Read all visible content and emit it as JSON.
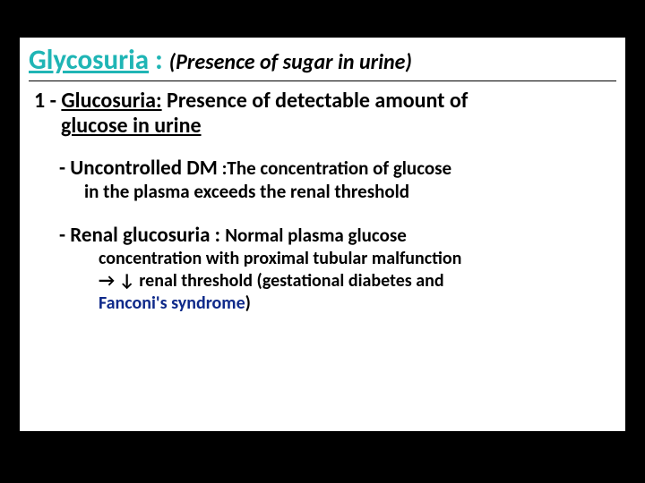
{
  "colors": {
    "background": "#000000",
    "slide_bg": "#ffffff",
    "title": "#1fb5b5",
    "text": "#000000",
    "fanconi": "#0f2a8a"
  },
  "title": {
    "main": "Glycosuria",
    "colon": " : ",
    "sub": "(Presence of sugar in urine)"
  },
  "item1": {
    "lead": "1 - ",
    "term": "Glucosuria:",
    "rest": " Presence of detectable amount of",
    "line2": "glucose in urine"
  },
  "subA": {
    "dash": "- ",
    "term": "Uncontrolled DM",
    "colon": " :",
    "desc": "The concentration of glucose",
    "body": "in the plasma exceeds the renal threshold"
  },
  "subB": {
    "dash": "- ",
    "term": "Renal glucosuria",
    "colon": " : ",
    "desc": "Normal plasma glucose",
    "body1": "concentration with proximal tubular malfunction",
    "body2a": "→ ↓ renal threshold ",
    "body2b_open": "(",
    "body2b": "gestational diabetes and",
    "body3": "Fanconi's syndrome",
    "body3_close": ")"
  }
}
